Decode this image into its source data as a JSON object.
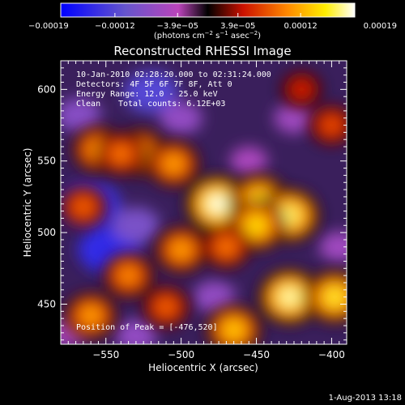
{
  "chart_data": {
    "type": "heatmap",
    "title": "Reconstructed RHESSI Image",
    "xlabel": "Heliocentric X (arcsec)",
    "ylabel": "Heliocentric Y (arcsec)",
    "xlim": [
      -580,
      -390
    ],
    "ylim": [
      422,
      620
    ],
    "xticks": [
      -550,
      -500,
      -450,
      -400
    ],
    "xtick_labels": [
      "−550",
      "−500",
      "−450",
      "−400"
    ],
    "yticks": [
      450,
      500,
      550,
      600
    ],
    "ytick_labels": [
      "450",
      "500",
      "550",
      "600"
    ],
    "colorbar": {
      "range": [
        -0.00019,
        0.00019
      ],
      "ticks": [
        -0.00019,
        -0.00012,
        -3.9e-05,
        3.9e-05,
        0.00012,
        0.00019
      ],
      "tick_labels": [
        "−0.00019",
        "−0.00012",
        "−3.9e−05",
        "3.9e−05",
        "0.00012",
        "0.00019"
      ],
      "unit_prefix": "(photons cm",
      "unit_sup1": "−2",
      "unit_mid1": " s",
      "unit_sup2": "−1",
      "unit_mid2": " asec",
      "unit_sup3": "−2",
      "unit_suffix": ")",
      "colors": [
        "#0000ff",
        "#6655cc",
        "#bb44bb",
        "#000000",
        "#cc1100",
        "#ff8800",
        "#ffee00",
        "#ffffff"
      ]
    },
    "annotations": {
      "time_range": "10-Jan-2010 02:28:20.000 to 02:31:24.000",
      "detectors": "Detectors: 4F 5F 6F 7F 8F, Att 0",
      "energy_range": "Energy Range: 12.0 - 25.0 keV",
      "algorithm": "Clean",
      "total_counts": "Total counts: 6.12E+03",
      "peak": "Position of Peak = [-476,520]"
    },
    "hot_sources": [
      {
        "x": -555,
        "y": 558,
        "value": 0.00012
      },
      {
        "x": -528,
        "y": 556,
        "value": 0.00013
      },
      {
        "x": -505,
        "y": 548,
        "value": 0.00012
      },
      {
        "x": -476,
        "y": 520,
        "value": 0.00019
      },
      {
        "x": -448,
        "y": 522,
        "value": 0.00016
      },
      {
        "x": -428,
        "y": 512,
        "value": 0.00017
      },
      {
        "x": -450,
        "y": 505,
        "value": 0.00015
      },
      {
        "x": -500,
        "y": 488,
        "value": 0.00012
      },
      {
        "x": -470,
        "y": 490,
        "value": 0.0001
      },
      {
        "x": -565,
        "y": 518,
        "value": 9e-05
      },
      {
        "x": -428,
        "y": 455,
        "value": 0.00018
      },
      {
        "x": -398,
        "y": 455,
        "value": 0.00016
      },
      {
        "x": -465,
        "y": 432,
        "value": 0.00014
      },
      {
        "x": -535,
        "y": 470,
        "value": 0.00011
      },
      {
        "x": -510,
        "y": 448,
        "value": 9e-05
      },
      {
        "x": -560,
        "y": 442,
        "value": 0.00012
      },
      {
        "x": -540,
        "y": 555,
        "value": 0.0001
      },
      {
        "x": -400,
        "y": 575,
        "value": 8e-05
      },
      {
        "x": -420,
        "y": 600,
        "value": 6e-05
      }
    ],
    "cold_regions": [
      {
        "x": -568,
        "y": 582,
        "value": -8e-05
      },
      {
        "x": -520,
        "y": 598,
        "value": -0.00012
      },
      {
        "x": -560,
        "y": 520,
        "value": -0.00014
      },
      {
        "x": -548,
        "y": 488,
        "value": -0.00015
      },
      {
        "x": -530,
        "y": 505,
        "value": -9e-05
      },
      {
        "x": -478,
        "y": 455,
        "value": -7e-05
      },
      {
        "x": -455,
        "y": 550,
        "value": -5e-05
      },
      {
        "x": -425,
        "y": 580,
        "value": -6e-05
      },
      {
        "x": -395,
        "y": 490,
        "value": -6e-05
      },
      {
        "x": -500,
        "y": 580,
        "value": -7e-05
      },
      {
        "x": -575,
        "y": 430,
        "value": -5e-05
      },
      {
        "x": -530,
        "y": 428,
        "value": -7e-05
      }
    ]
  },
  "footer": {
    "date": "1-Aug-2013 13:18"
  }
}
